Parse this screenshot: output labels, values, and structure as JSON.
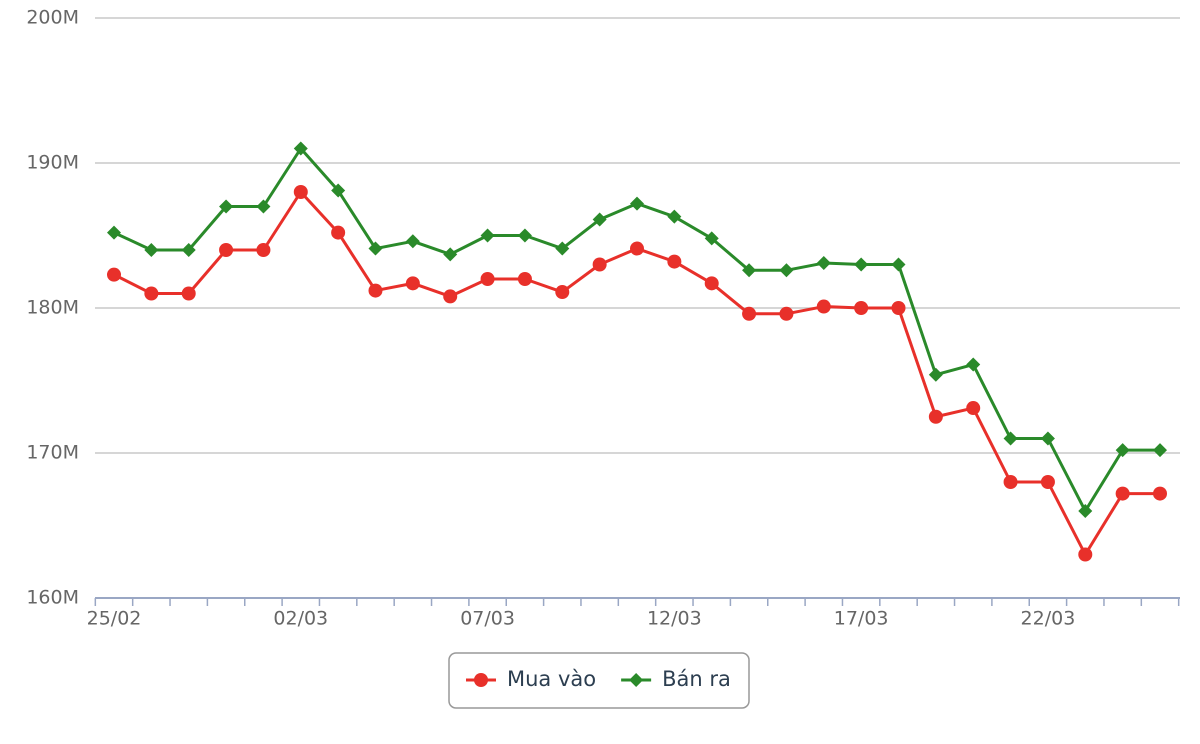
{
  "chart_data": {
    "type": "line",
    "categories": [
      "25/02",
      null,
      null,
      null,
      null,
      "02/03",
      null,
      null,
      null,
      null,
      "07/03",
      null,
      null,
      null,
      null,
      "12/03",
      null,
      null,
      null,
      null,
      "17/03",
      null,
      null,
      null,
      null,
      "22/03",
      null,
      null,
      null
    ],
    "series": [
      {
        "name": "Mua vào",
        "color": "#e8302a",
        "marker": "circle",
        "values": [
          182.3,
          181.0,
          181.0,
          184.0,
          184.0,
          188.0,
          185.2,
          181.2,
          181.7,
          180.8,
          182.0,
          182.0,
          181.1,
          183.0,
          184.1,
          183.2,
          181.7,
          179.6,
          179.6,
          180.1,
          180.0,
          180.0,
          172.5,
          173.1,
          168.0,
          168.0,
          163.0,
          167.2,
          167.2
        ]
      },
      {
        "name": "Bán ra",
        "color": "#2a8a2a",
        "marker": "diamond",
        "values": [
          185.2,
          184.0,
          184.0,
          187.0,
          187.0,
          191.0,
          188.1,
          184.1,
          184.6,
          183.7,
          185.0,
          185.0,
          184.1,
          186.1,
          187.2,
          186.3,
          184.8,
          182.6,
          182.6,
          183.1,
          183.0,
          183.0,
          175.4,
          176.1,
          171.0,
          171.0,
          166.0,
          170.2,
          170.2
        ]
      }
    ],
    "ylim": [
      160,
      200
    ],
    "yticks": [
      {
        "value": 160,
        "label": "160M"
      },
      {
        "value": 170,
        "label": "170M"
      },
      {
        "value": 180,
        "label": "180M"
      },
      {
        "value": 190,
        "label": "190M"
      },
      {
        "value": 200,
        "label": "200M"
      }
    ],
    "grid": true,
    "legend": "bottom"
  }
}
